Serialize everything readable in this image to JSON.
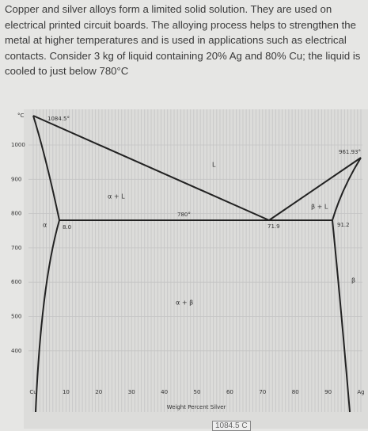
{
  "question": "Copper and silver alloys form a limited solid solution. They are used on electrical printed circuit boards. The alloying process helps to strengthen the metal at higher temperatures and is used in applications such as electrical contacts. Consider 3 kg of liquid containing 20% Ag and 80% Cu; the liquid is cooled to just below 780°C",
  "diagram": {
    "temperature_unit": "°C",
    "y_labels": [
      "1000",
      "900",
      "800",
      "700",
      "600",
      "500",
      "400"
    ],
    "x_labels": [
      "Cu",
      "10",
      "20",
      "30",
      "40",
      "50",
      "60",
      "70",
      "80",
      "90",
      "Ag"
    ],
    "x_axis_title": "Weight Percent Silver",
    "annotations": {
      "cu_melting": "1084.5°",
      "ag_melting": "961.93°",
      "eutectic_temp": "780°",
      "alpha_limit": "8.0",
      "eutectic_comp": "71.9",
      "beta_limit": "91.2"
    },
    "regions": {
      "liquid": "L",
      "alpha_liquid": "α + L",
      "beta_liquid": "β + L",
      "alpha": "α",
      "beta": "β",
      "alpha_beta": "α + β"
    }
  },
  "bottom_fragment": "1084.5 C"
}
